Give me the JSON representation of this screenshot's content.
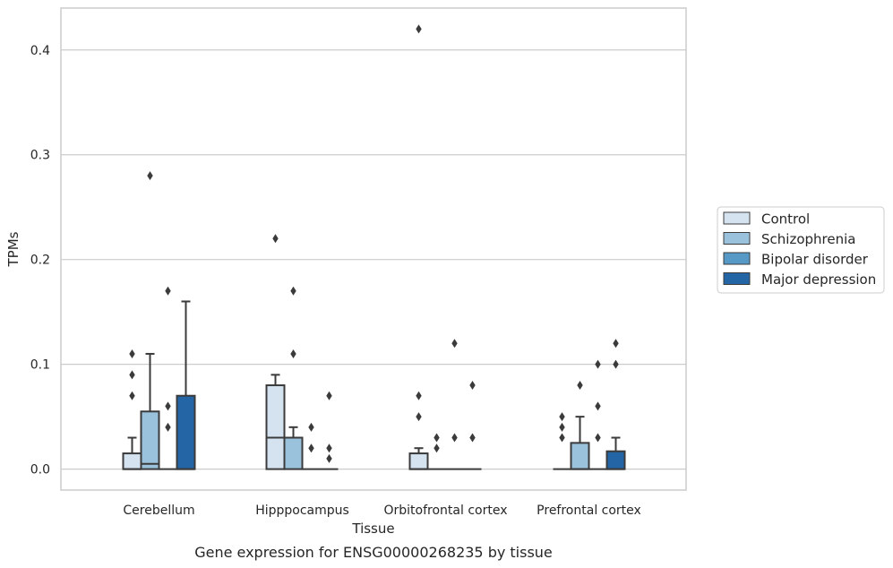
{
  "caption": "Gene expression for ENSG00000268235 by tissue",
  "chart_data": {
    "type": "box",
    "xlabel": "Tissue",
    "ylabel": "TPMs",
    "ylim": [
      -0.02,
      0.44
    ],
    "yticks": [
      0.0,
      0.1,
      0.2,
      0.3,
      0.4
    ],
    "ytick_labels": [
      "0.0",
      "0.1",
      "0.2",
      "0.3",
      "0.4"
    ],
    "grid": "horizontal",
    "legend_position": "right",
    "categories": [
      "Cerebellum",
      "Hipppocampus",
      "Orbitofrontal cortex",
      "Prefrontal cortex"
    ],
    "series": [
      {
        "name": "Control",
        "color": "#d5e3f0",
        "boxes": [
          {
            "q1": 0,
            "median": 0,
            "q3": 0.015,
            "whisker_low": 0,
            "whisker_high": 0.03,
            "outliers": [
              0.07,
              0.09,
              0.11
            ]
          },
          {
            "q1": 0,
            "median": 0.03,
            "q3": 0.08,
            "whisker_low": 0,
            "whisker_high": 0.09,
            "outliers": [
              0.22
            ]
          },
          {
            "q1": 0,
            "median": 0,
            "q3": 0.015,
            "whisker_low": 0,
            "whisker_high": 0.02,
            "outliers": [
              0.05,
              0.07,
              0.42
            ]
          },
          {
            "q1": 0,
            "median": 0,
            "q3": 0,
            "whisker_low": 0,
            "whisker_high": 0,
            "outliers": [
              0.03,
              0.04,
              0.05
            ]
          }
        ]
      },
      {
        "name": "Schizophrenia",
        "color": "#9ac2dc",
        "boxes": [
          {
            "q1": 0,
            "median": 0.005,
            "q3": 0.055,
            "whisker_low": 0,
            "whisker_high": 0.11,
            "outliers": [
              0.28
            ]
          },
          {
            "q1": 0,
            "median": 0.03,
            "q3": 0.03,
            "whisker_low": 0,
            "whisker_high": 0.04,
            "outliers": [
              0.11,
              0.17
            ]
          },
          {
            "q1": 0,
            "median": 0,
            "q3": 0,
            "whisker_low": 0,
            "whisker_high": 0,
            "outliers": [
              0.02,
              0.03
            ]
          },
          {
            "q1": 0,
            "median": 0,
            "q3": 0.025,
            "whisker_low": 0,
            "whisker_high": 0.05,
            "outliers": [
              0.08
            ]
          }
        ]
      },
      {
        "name": "Bipolar disorder",
        "color": "#5698c6",
        "boxes": [
          {
            "q1": 0,
            "median": 0,
            "q3": 0,
            "whisker_low": 0,
            "whisker_high": 0,
            "outliers": [
              0.04,
              0.06,
              0.17
            ]
          },
          {
            "q1": 0,
            "median": 0,
            "q3": 0,
            "whisker_low": 0,
            "whisker_high": 0,
            "outliers": [
              0.02,
              0.04
            ]
          },
          {
            "q1": 0,
            "median": 0,
            "q3": 0,
            "whisker_low": 0,
            "whisker_high": 0,
            "outliers": [
              0.03,
              0.12
            ]
          },
          {
            "q1": 0,
            "median": 0,
            "q3": 0,
            "whisker_low": 0,
            "whisker_high": 0,
            "outliers": [
              0.03,
              0.06,
              0.1
            ]
          }
        ]
      },
      {
        "name": "Major depression",
        "color": "#2465a5",
        "boxes": [
          {
            "q1": 0,
            "median": 0,
            "q3": 0.07,
            "whisker_low": 0,
            "whisker_high": 0.16,
            "outliers": []
          },
          {
            "q1": 0,
            "median": 0,
            "q3": 0,
            "whisker_low": 0,
            "whisker_high": 0,
            "outliers": [
              0.01,
              0.02,
              0.07
            ]
          },
          {
            "q1": 0,
            "median": 0,
            "q3": 0,
            "whisker_low": 0,
            "whisker_high": 0,
            "outliers": [
              0.03,
              0.08
            ]
          },
          {
            "q1": 0,
            "median": 0,
            "q3": 0.017,
            "whisker_low": 0,
            "whisker_high": 0.03,
            "outliers": [
              0.1,
              0.12
            ]
          }
        ]
      }
    ],
    "colors": {
      "grid": "#cccccc",
      "frame": "#cccccc",
      "box_edge": "#3b3b3b",
      "outlier": "#3b3b3b"
    }
  }
}
